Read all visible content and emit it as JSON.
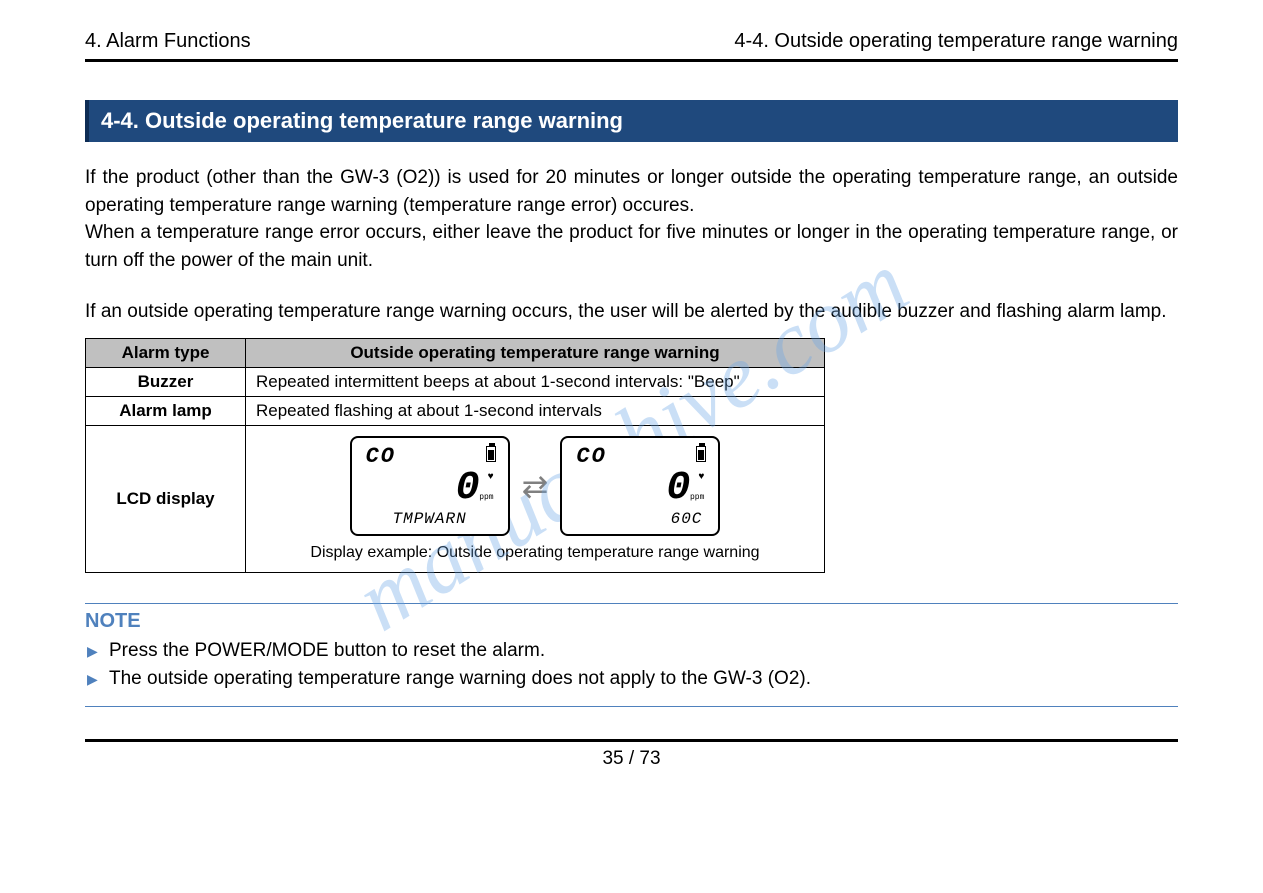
{
  "header": {
    "left": "4. Alarm Functions",
    "right": "4-4. Outside operating temperature range warning"
  },
  "section_title": "4-4. Outside operating temperature range warning",
  "paragraph1": "If the product (other than the GW-3 (O2)) is used for 20 minutes or longer outside the operating temperature range, an outside operating temperature range warning (temperature range error) occures.\nWhen a temperature range error occurs, either leave the product for five minutes or longer in the operating temperature range, or turn off the power of the main unit.",
  "paragraph2": "If an outside operating temperature range warning occurs, the user will be alerted by the audible buzzer and flashing alarm lamp.",
  "table": {
    "header_left": "Alarm type",
    "header_right": "Outside operating temperature range warning",
    "rows": [
      {
        "label": "Buzzer",
        "value": "Repeated intermittent beeps at about 1-second intervals: \"Beep\""
      },
      {
        "label": "Alarm lamp",
        "value": "Repeated flashing at about 1-second intervals"
      }
    ],
    "lcd_label": "LCD display",
    "lcd_caption": "Display example: Outside operating temperature range warning",
    "lcd_left": {
      "top": "CO",
      "value": "0",
      "unit": "ppm",
      "bottom": "TMPWARN"
    },
    "lcd_right": {
      "top": "CO",
      "value": "0",
      "unit": "ppm",
      "bottom": "60C"
    }
  },
  "note": {
    "title": "NOTE",
    "items": [
      "Press the POWER/MODE button to reset the alarm.",
      "The outside operating temperature range warning does not apply to the GW-3 (O2)."
    ]
  },
  "page_number": "35 / 73",
  "watermark": "manualshive.com",
  "colors": {
    "title_bg": "#1f497d",
    "note_accent": "#4f81bd",
    "table_header_bg": "#c0c0c0",
    "watermark_color": "#6aa6e6"
  }
}
